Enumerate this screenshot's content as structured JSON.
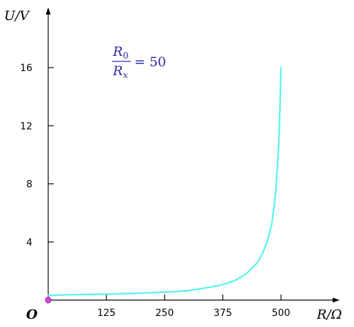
{
  "chart_data": {
    "type": "line",
    "xlabel": "R/Ω",
    "ylabel": "U/V",
    "origin_label": "O",
    "xlim": [
      0,
      500
    ],
    "ylim": [
      0,
      16
    ],
    "x_ticks": [
      125,
      250,
      375,
      500
    ],
    "y_ticks": [
      4,
      8,
      12,
      16
    ],
    "grid": false,
    "annotation": {
      "numerator_base": "R",
      "numerator_sub": "0",
      "denominator_base": "R",
      "denominator_sub": "x",
      "equals": "= 50"
    },
    "series": [
      {
        "color": "#5ff2f2",
        "x": [
          0,
          20,
          50,
          100,
          150,
          200,
          250,
          300,
          350,
          375,
          400,
          425,
          450,
          460,
          470,
          480,
          485,
          490,
          495,
          497,
          500
        ],
        "y": [
          0.32,
          0.34,
          0.37,
          0.39,
          0.43,
          0.48,
          0.55,
          0.64,
          0.9,
          1.07,
          1.33,
          1.8,
          2.6,
          3.2,
          4.0,
          5.2,
          6.4,
          8.0,
          10.6,
          12.4,
          16
        ]
      }
    ],
    "origin_point": {
      "x": 0,
      "y": 0,
      "color": "#e040e0"
    },
    "axis_color": "#000000",
    "annotation_color": "#2a2aa8"
  }
}
